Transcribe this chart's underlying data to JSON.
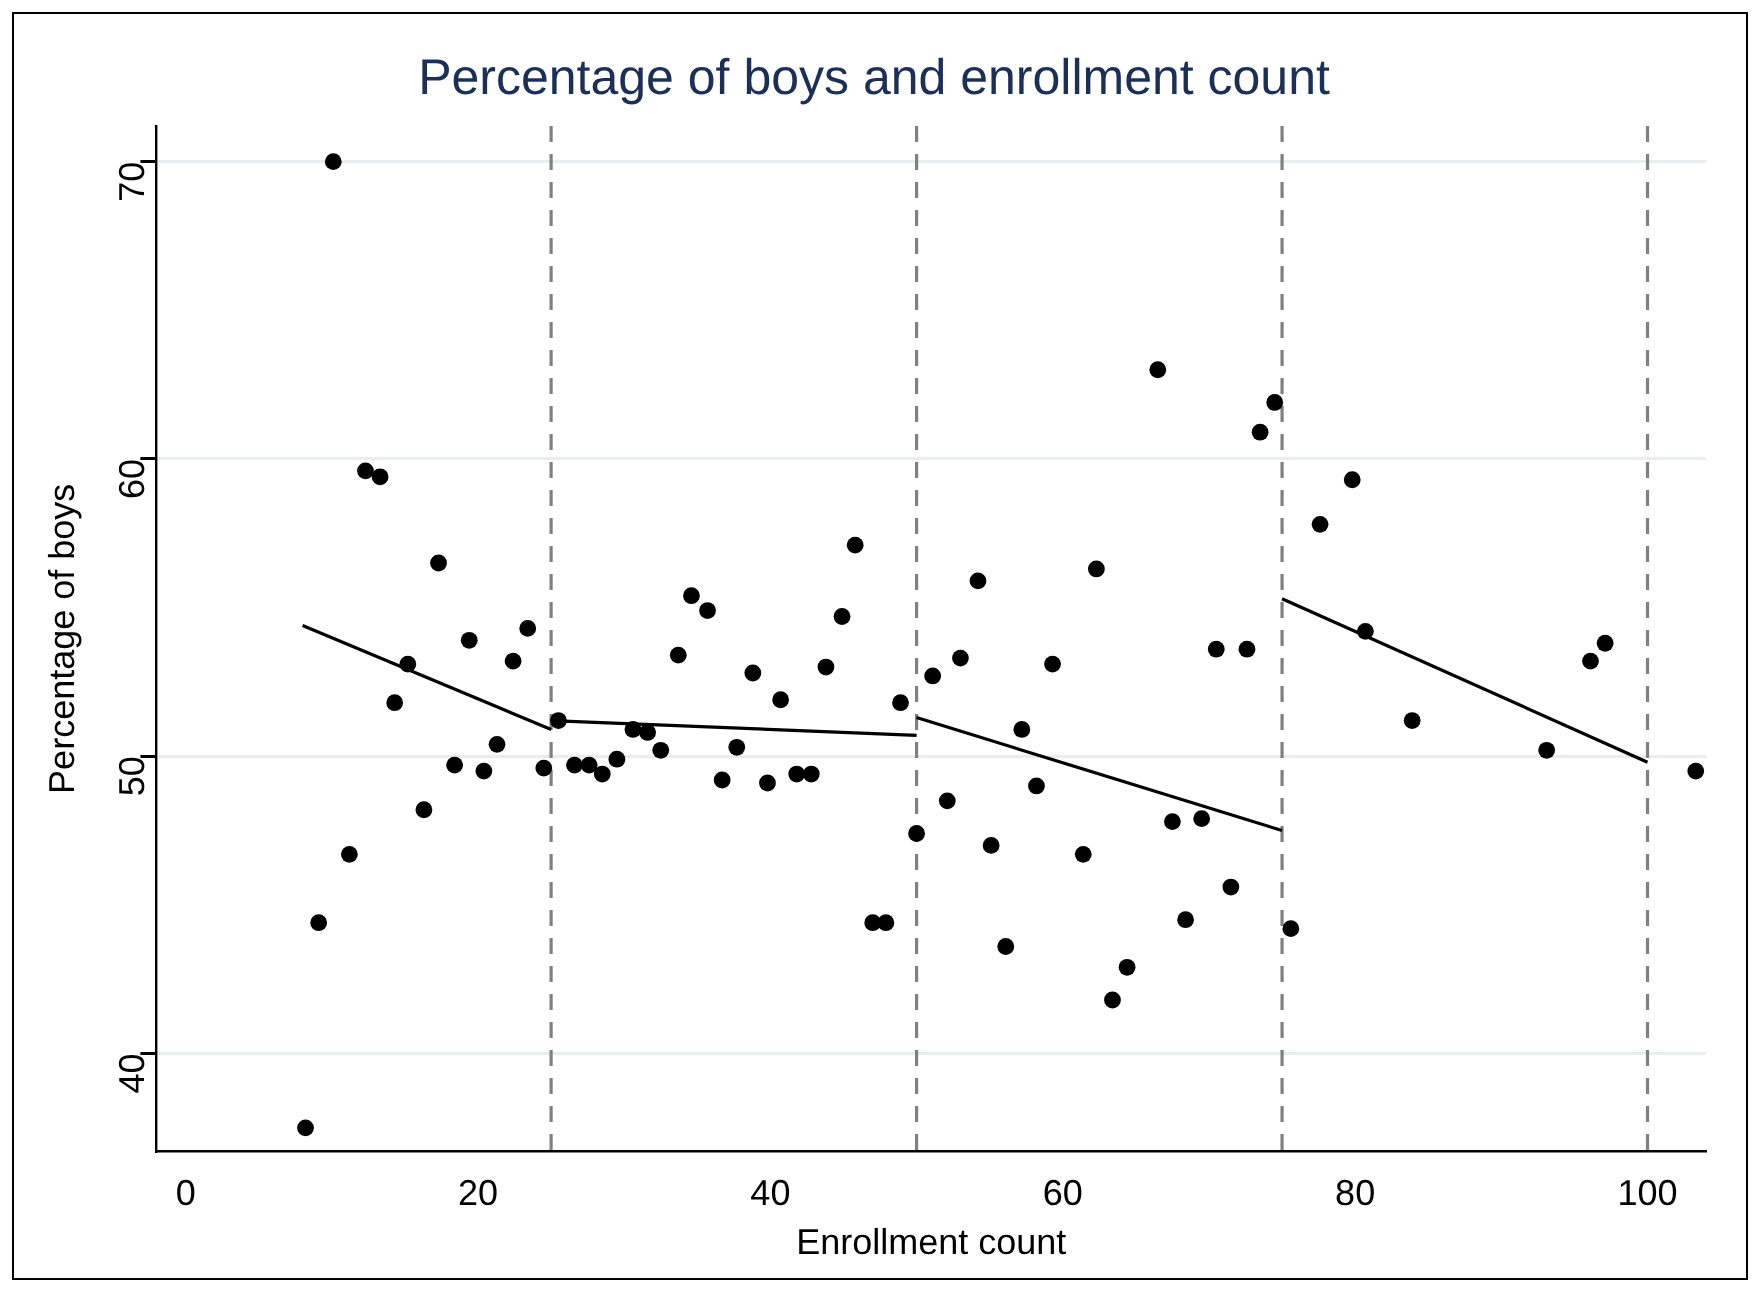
{
  "chart_data": {
    "type": "scatter",
    "title": "Percentage of boys and enrollment count",
    "xlabel": "Enrollment count",
    "ylabel": "Percentage of boys",
    "xlim": [
      -2,
      104
    ],
    "xticks": [
      0,
      20,
      40,
      60,
      80,
      100
    ],
    "ylim": [
      36.7,
      71.2
    ],
    "yticks": [
      40,
      50,
      60,
      70
    ],
    "grid": "y",
    "legend": false,
    "marker": "circle",
    "series": [
      {
        "type": "scatter",
        "color": "#000000",
        "x": [
          8.2,
          9.1,
          10.1,
          11.2,
          12.3,
          13.3,
          14.3,
          15.2,
          16.3,
          17.3,
          18.4,
          19.4,
          20.4,
          21.3,
          22.4,
          23.4,
          24.5,
          25.5,
          26.6,
          27.6,
          28.5,
          29.5,
          30.6,
          31.6,
          32.5,
          33.7,
          34.6,
          35.7,
          36.7,
          37.7,
          38.8,
          39.8,
          40.7,
          41.8,
          42.8,
          43.8,
          44.9,
          45.8,
          47,
          47.9,
          48.9,
          50,
          51.1,
          52.1,
          53,
          54.2,
          55.1,
          56.1,
          57.2,
          58.2,
          59.3,
          61.4,
          62.3,
          63.4,
          64.4,
          66.5,
          67.5,
          68.4,
          69.5,
          70.5,
          71.5,
          72.6,
          73.5,
          74.5,
          75.6,
          77.6,
          79.8,
          80.7,
          83.9,
          93.1,
          96.1,
          97.1,
          103.3
        ],
        "values": [
          37.5,
          44.4,
          70,
          46.7,
          59.6,
          59.4,
          51.8,
          53.1,
          48.2,
          56.5,
          49.7,
          53.9,
          49.5,
          50.4,
          53.2,
          54.3,
          49.6,
          51.2,
          49.7,
          49.7,
          49.4,
          49.9,
          50.9,
          50.8,
          50.2,
          53.4,
          55.4,
          54.9,
          49.2,
          50.3,
          52.8,
          49.1,
          51.9,
          49.4,
          49.4,
          53,
          54.7,
          57.1,
          44.4,
          44.4,
          51.8,
          47.4,
          52.7,
          48.5,
          53.3,
          55.9,
          47,
          43.6,
          50.9,
          49,
          53.1,
          46.7,
          56.3,
          41.8,
          42.9,
          63,
          47.8,
          44.5,
          47.9,
          53.6,
          45.6,
          53.6,
          60.9,
          61.9,
          44.2,
          57.8,
          59.3,
          54.2,
          51.2,
          50.2,
          53.2,
          53.8,
          49.5
        ]
      },
      {
        "type": "line",
        "color": "#000000",
        "marker": "none",
        "x": [
          8,
          25
        ],
        "values": [
          54.4,
          50.9
        ]
      },
      {
        "type": "line",
        "color": "#000000",
        "marker": "none",
        "x": [
          25,
          50
        ],
        "values": [
          51.2,
          50.7
        ]
      },
      {
        "type": "line",
        "color": "#000000",
        "marker": "none",
        "x": [
          50,
          75
        ],
        "values": [
          51.3,
          47.5
        ]
      },
      {
        "type": "line",
        "color": "#000000",
        "marker": "none",
        "x": [
          75,
          100
        ],
        "values": [
          55.3,
          49.8
        ]
      }
    ],
    "ref_lines": [
      {
        "axis": "x",
        "value": 25,
        "color": "#808080",
        "line_style": "dashed"
      },
      {
        "axis": "x",
        "value": 50,
        "color": "#808080",
        "line_style": "dashed"
      },
      {
        "axis": "x",
        "value": 75,
        "color": "#808080",
        "line_style": "dashed"
      },
      {
        "axis": "x",
        "value": 100,
        "color": "#808080",
        "line_style": "dashed"
      }
    ]
  }
}
